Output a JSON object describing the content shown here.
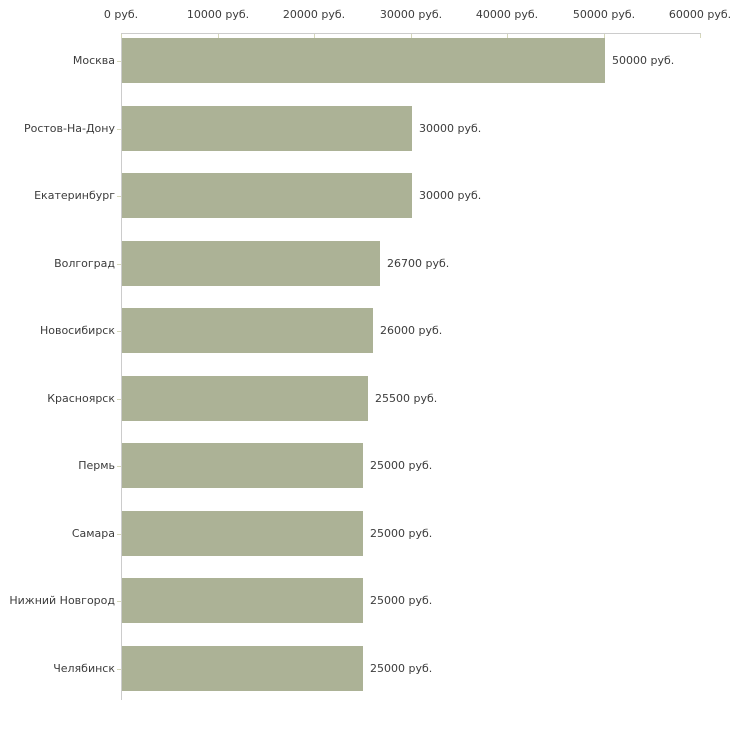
{
  "chart_data": {
    "type": "bar",
    "orientation": "horizontal",
    "title": "",
    "xlabel": "",
    "ylabel": "",
    "x_unit": "руб.",
    "xlim": [
      0,
      60000
    ],
    "grid": false,
    "legend_position": "none",
    "x_ticks": [
      {
        "value": 0,
        "label": "0 руб."
      },
      {
        "value": 10000,
        "label": "10000 руб."
      },
      {
        "value": 20000,
        "label": "20000 руб."
      },
      {
        "value": 30000,
        "label": "30000 руб."
      },
      {
        "value": 40000,
        "label": "40000 руб."
      },
      {
        "value": 50000,
        "label": "50000 руб."
      },
      {
        "value": 60000,
        "label": "60000 руб."
      }
    ],
    "bars": [
      {
        "category": "Москва",
        "value": 50000,
        "label": "50000 руб."
      },
      {
        "category": "Ростов-На-Дону",
        "value": 30000,
        "label": "30000 руб."
      },
      {
        "category": "Екатеринбург",
        "value": 30000,
        "label": "30000 руб."
      },
      {
        "category": "Волгоград",
        "value": 26700,
        "label": "26700 руб."
      },
      {
        "category": "Новосибирск",
        "value": 26000,
        "label": "26000 руб."
      },
      {
        "category": "Красноярск",
        "value": 25500,
        "label": "25500 руб."
      },
      {
        "category": "Пермь",
        "value": 25000,
        "label": "25000 руб."
      },
      {
        "category": "Самара",
        "value": 25000,
        "label": "25000 руб."
      },
      {
        "category": "Нижний Новгород",
        "value": 25000,
        "label": "25000 руб."
      },
      {
        "category": "Челябинск",
        "value": 25000,
        "label": "25000 руб."
      }
    ],
    "colors": {
      "bar_fill": "#acb296",
      "axis_line": "#cccccc",
      "tick_mark": "#d5d7ba",
      "label_text": "#3c3c3c",
      "background": "#ffffff"
    }
  }
}
